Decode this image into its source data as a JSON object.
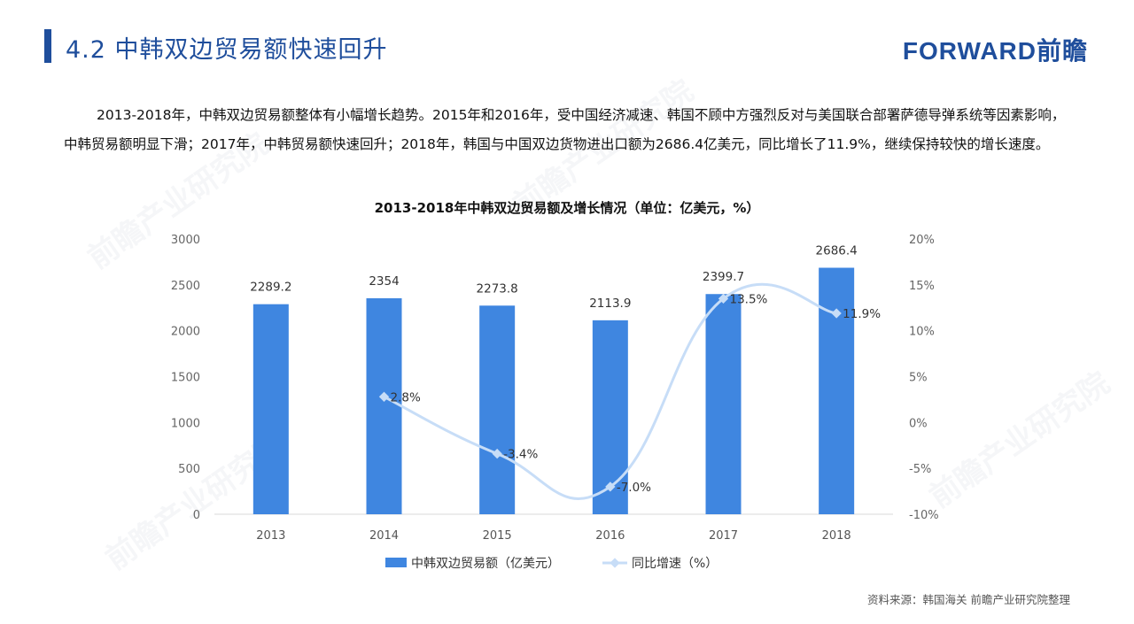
{
  "header": {
    "title": "4.2 中韩双边贸易额快速回升",
    "logo_text": "FORWARD前瞻"
  },
  "intro": {
    "paragraph": "2013-2018年，中韩双边贸易额整体有小幅增长趋势。2015年和2016年，受中国经济减速、韩国不顾中方强烈反对与美国联合部署萨德导弹系统等因素影响，中韩贸易额明显下滑；2017年，中韩贸易额快速回升；2018年，韩国与中国双边货物进出口额为2686.4亿美元，同比增长了11.9%，继续保持较快的增长速度。"
  },
  "footer": {
    "source": "资料来源：韩国海关   前瞻产业研究院整理"
  },
  "colors": {
    "bar": "#3f86e0",
    "line": "#c7ddf7",
    "brand": "#1f4e9c"
  },
  "chart_data": {
    "type": "bar",
    "title": "2013-2018年中韩双边贸易额及增长情况（单位：亿美元，%）",
    "categories": [
      "2013",
      "2014",
      "2015",
      "2016",
      "2017",
      "2018"
    ],
    "series": [
      {
        "name": "中韩双边贸易额（亿美元）",
        "type": "bar",
        "axis": "left",
        "values": [
          2289.2,
          2354,
          2273.8,
          2113.9,
          2399.7,
          2686.4
        ],
        "labels": [
          "2289.2",
          "2354",
          "2273.8",
          "2113.9",
          "2399.7",
          "2686.4"
        ]
      },
      {
        "name": "同比增速（%）",
        "type": "line",
        "axis": "right",
        "values": [
          null,
          2.8,
          -3.4,
          -7.0,
          13.5,
          11.9
        ],
        "labels": [
          "",
          "2.8%",
          "-3.4%",
          "-7.0%",
          "13.5%",
          "11.9%"
        ]
      }
    ],
    "y_left": {
      "range": [
        0,
        3000
      ],
      "ticks": [
        0,
        500,
        1000,
        1500,
        2000,
        2500,
        3000
      ],
      "tick_labels": [
        "0",
        "500",
        "1000",
        "1500",
        "2000",
        "2500",
        "3000"
      ]
    },
    "y_right": {
      "range": [
        -10,
        20
      ],
      "ticks": [
        -10,
        -5,
        0,
        5,
        10,
        15,
        20
      ],
      "tick_labels": [
        "-10%",
        "-5%",
        "0%",
        "5%",
        "10%",
        "15%",
        "20%"
      ]
    },
    "legend": {
      "placement": "bottom-center",
      "items": [
        "中韩双边贸易额（亿美元）",
        "同比增速（%）"
      ]
    },
    "grid": false
  }
}
